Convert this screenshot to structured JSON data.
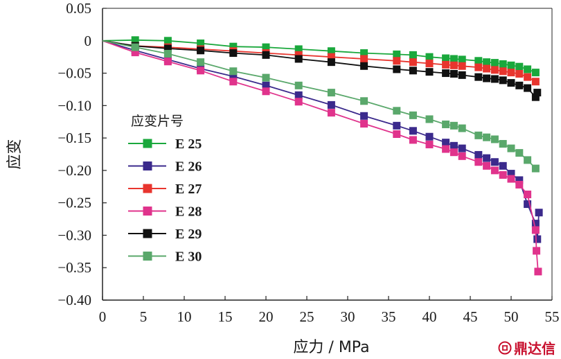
{
  "chart_data": {
    "type": "line",
    "xlabel": "应力 / MPa",
    "ylabel": "应变",
    "xlim": [
      0,
      55
    ],
    "ylim": [
      -0.4,
      0.05
    ],
    "xticks": [
      "0",
      "5",
      "10",
      "15",
      "20",
      "25",
      "30",
      "35",
      "40",
      "45",
      "50",
      "55"
    ],
    "yticks": [
      "0.05",
      "0",
      "-0.05",
      "-0.10",
      "-0.15",
      "-0.20",
      "-0.25",
      "-0.30",
      "-0.35",
      "-0.40"
    ],
    "grid": false,
    "legend": {
      "title": "应变片号",
      "position": "left-middle"
    },
    "series": [
      {
        "name": "E 25",
        "color": "#1aa83c",
        "marker": "square",
        "x": [
          0,
          4,
          8,
          12,
          16,
          20,
          24,
          28,
          32,
          36,
          38,
          40,
          42,
          43,
          44,
          46,
          47,
          48,
          49,
          50,
          51,
          52,
          53
        ],
        "y": [
          0,
          0.001,
          0.0,
          -0.004,
          -0.009,
          -0.01,
          -0.013,
          -0.016,
          -0.019,
          -0.021,
          -0.022,
          -0.025,
          -0.027,
          -0.028,
          -0.029,
          -0.031,
          -0.033,
          -0.034,
          -0.036,
          -0.038,
          -0.04,
          -0.044,
          -0.049
        ]
      },
      {
        "name": "E 26",
        "color": "#3b2a8c",
        "marker": "square",
        "x": [
          0,
          4,
          8,
          12,
          16,
          20,
          24,
          28,
          32,
          36,
          38,
          40,
          42,
          43,
          44,
          46,
          47,
          48,
          49,
          50,
          51,
          52,
          53,
          53.2,
          53.4
        ],
        "y": [
          0,
          -0.015,
          -0.029,
          -0.043,
          -0.055,
          -0.069,
          -0.084,
          -0.099,
          -0.116,
          -0.131,
          -0.139,
          -0.148,
          -0.157,
          -0.162,
          -0.166,
          -0.176,
          -0.181,
          -0.187,
          -0.193,
          -0.205,
          -0.215,
          -0.252,
          -0.282,
          -0.306,
          -0.265
        ]
      },
      {
        "name": "E 27",
        "color": "#e8352e",
        "marker": "square",
        "x": [
          0,
          4,
          8,
          12,
          16,
          20,
          24,
          28,
          32,
          36,
          38,
          40,
          42,
          43,
          44,
          46,
          47,
          48,
          49,
          50,
          51,
          52,
          53
        ],
        "y": [
          0,
          -0.008,
          -0.01,
          -0.013,
          -0.016,
          -0.019,
          -0.022,
          -0.025,
          -0.028,
          -0.031,
          -0.033,
          -0.035,
          -0.037,
          -0.038,
          -0.039,
          -0.041,
          -0.043,
          -0.045,
          -0.047,
          -0.049,
          -0.051,
          -0.056,
          -0.063
        ]
      },
      {
        "name": "E 28",
        "color": "#e0338c",
        "marker": "square",
        "x": [
          0,
          4,
          8,
          12,
          16,
          20,
          24,
          28,
          32,
          36,
          38,
          40,
          42,
          43,
          44,
          46,
          47,
          48,
          49,
          50,
          51,
          52,
          53,
          53.1,
          53.3
        ],
        "y": [
          0,
          -0.018,
          -0.032,
          -0.046,
          -0.063,
          -0.078,
          -0.094,
          -0.111,
          -0.128,
          -0.144,
          -0.153,
          -0.16,
          -0.167,
          -0.172,
          -0.178,
          -0.187,
          -0.193,
          -0.2,
          -0.207,
          -0.213,
          -0.222,
          -0.237,
          -0.292,
          -0.324,
          -0.356
        ]
      },
      {
        "name": "E 29",
        "color": "#111111",
        "marker": "square",
        "x": [
          0,
          4,
          8,
          12,
          16,
          20,
          24,
          28,
          32,
          36,
          38,
          40,
          42,
          43,
          44,
          46,
          47,
          48,
          49,
          50,
          51,
          52,
          53,
          53.2
        ],
        "y": [
          0,
          -0.008,
          -0.012,
          -0.015,
          -0.019,
          -0.022,
          -0.028,
          -0.033,
          -0.039,
          -0.044,
          -0.046,
          -0.048,
          -0.05,
          -0.051,
          -0.053,
          -0.056,
          -0.058,
          -0.059,
          -0.061,
          -0.065,
          -0.069,
          -0.073,
          -0.087,
          -0.08
        ]
      },
      {
        "name": "E 30",
        "color": "#5aa86b",
        "marker": "square",
        "x": [
          0,
          4,
          8,
          12,
          16,
          20,
          24,
          28,
          32,
          36,
          38,
          40,
          42,
          43,
          44,
          46,
          47,
          48,
          49,
          50,
          51,
          52,
          53
        ],
        "y": [
          0,
          -0.01,
          -0.02,
          -0.033,
          -0.047,
          -0.057,
          -0.069,
          -0.08,
          -0.093,
          -0.108,
          -0.115,
          -0.121,
          -0.129,
          -0.131,
          -0.135,
          -0.146,
          -0.149,
          -0.152,
          -0.159,
          -0.166,
          -0.173,
          -0.184,
          -0.197
        ]
      }
    ]
  },
  "watermark": {
    "text": "鼎达信"
  }
}
